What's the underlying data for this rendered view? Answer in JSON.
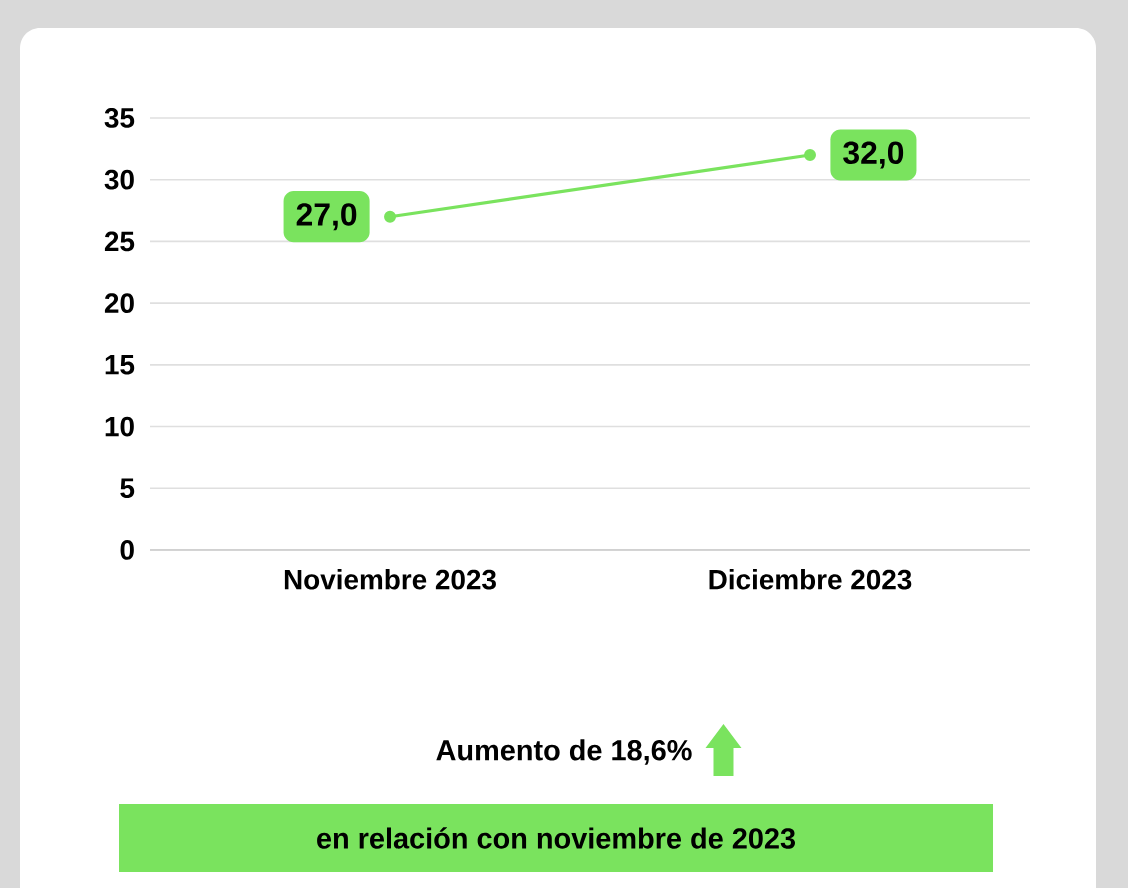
{
  "chart_data": {
    "type": "line",
    "categories": [
      "Noviembre 2023",
      "Diciembre 2023"
    ],
    "series": [
      {
        "color": "#7ae35e",
        "values": [
          27.0,
          32.0
        ],
        "value_labels": [
          "27,0",
          "32,0"
        ]
      }
    ],
    "ylim": [
      0,
      35
    ],
    "yticks": [
      0,
      5,
      10,
      15,
      20,
      25,
      30,
      35
    ],
    "grid": "y",
    "marker": "circle",
    "annotations": [
      "Aumento de 18,6%",
      "en relación con noviembre de 2023"
    ]
  }
}
